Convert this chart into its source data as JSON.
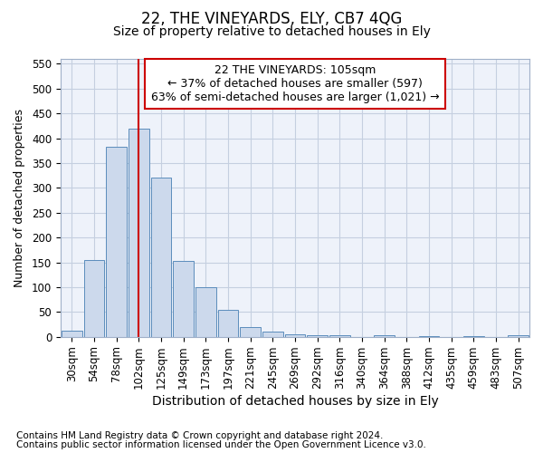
{
  "title": "22, THE VINEYARDS, ELY, CB7 4QG",
  "subtitle": "Size of property relative to detached houses in Ely",
  "xlabel": "Distribution of detached houses by size in Ely",
  "ylabel": "Number of detached properties",
  "footnote1": "Contains HM Land Registry data © Crown copyright and database right 2024.",
  "footnote2": "Contains public sector information licensed under the Open Government Licence v3.0.",
  "annotation_line1": "22 THE VINEYARDS: 105sqm",
  "annotation_line2": "← 37% of detached houses are smaller (597)",
  "annotation_line3": "63% of semi-detached houses are larger (1,021) →",
  "bar_labels": [
    "30sqm",
    "54sqm",
    "78sqm",
    "102sqm",
    "125sqm",
    "149sqm",
    "173sqm",
    "197sqm",
    "221sqm",
    "245sqm",
    "269sqm",
    "292sqm",
    "316sqm",
    "340sqm",
    "364sqm",
    "388sqm",
    "412sqm",
    "435sqm",
    "459sqm",
    "483sqm",
    "507sqm"
  ],
  "bar_values": [
    13,
    155,
    383,
    420,
    320,
    152,
    100,
    55,
    20,
    10,
    5,
    3,
    3,
    0,
    3,
    0,
    2,
    0,
    2,
    0,
    3
  ],
  "bar_color": "#ccd9ec",
  "bar_edge_color": "#5b8dbc",
  "background_color": "#eef2fa",
  "grid_color": "#c5cfe0",
  "vline_x": 3,
  "vline_color": "#cc0000",
  "ylim": [
    0,
    560
  ],
  "yticks": [
    0,
    50,
    100,
    150,
    200,
    250,
    300,
    350,
    400,
    450,
    500,
    550
  ],
  "annotation_box_color": "#cc0000",
  "title_fontsize": 12,
  "subtitle_fontsize": 10,
  "xlabel_fontsize": 10,
  "ylabel_fontsize": 9,
  "tick_fontsize": 8.5,
  "annotation_fontsize": 9,
  "footnote_fontsize": 7.5
}
